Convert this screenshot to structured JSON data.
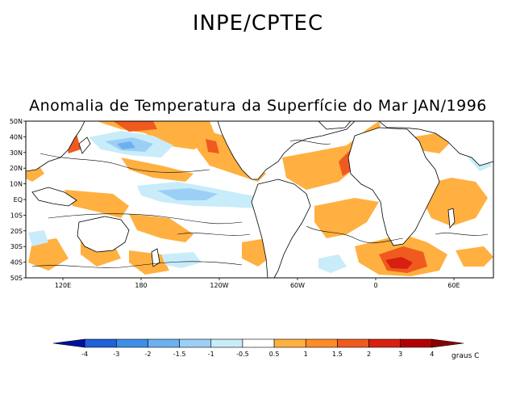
{
  "header": {
    "organization": "INPE/CPTEC",
    "map_title": "Anomalia de Temperatura da Superfície do Mar JAN/1996"
  },
  "axes": {
    "lat_labels": [
      "50N",
      "40N",
      "30N",
      "20N",
      "10N",
      "EQ",
      "10S",
      "20S",
      "30S",
      "40S",
      "50S"
    ],
    "lon_labels": [
      "120E",
      "180",
      "120W",
      "60W",
      "0",
      "60E"
    ]
  },
  "colorbar": {
    "labels": [
      "-4",
      "-3",
      "-2",
      "-1.5",
      "-1",
      "-0.5",
      "0.5",
      "1",
      "1.5",
      "2",
      "3",
      "4"
    ],
    "colors": [
      "#0010a0",
      "#2060d8",
      "#3c8ee8",
      "#6cb0f0",
      "#9ccff6",
      "#c8ecfa",
      "#ffffff",
      "#ffb040",
      "#ff8c28",
      "#f05a1e",
      "#d82010",
      "#b00000",
      "#8c0000"
    ],
    "unit": "graus C"
  }
}
